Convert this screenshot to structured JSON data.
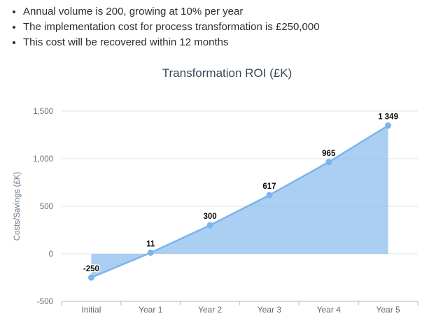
{
  "bullets": [
    "Annual volume is 200, growing at 10% per year",
    "The implementation cost for process transformation is £250,000",
    "This cost will be recovered within 12 months"
  ],
  "chart_data": {
    "type": "area",
    "title": "Transformation ROI (£K)",
    "categories": [
      "Initial",
      "Year 1",
      "Year 2",
      "Year 3",
      "Year 4",
      "Year 5"
    ],
    "values": [
      -250,
      11,
      300,
      617,
      965,
      1349
    ],
    "point_labels": [
      "-250",
      "11",
      "300",
      "617",
      "965",
      "1 349"
    ],
    "xlabel": "",
    "ylabel": "Costs/Savings (£K)",
    "ylim": [
      -500,
      1500
    ],
    "yticks": [
      {
        "value": -500,
        "label": "-500"
      },
      {
        "value": 0,
        "label": "0"
      },
      {
        "value": 500,
        "label": "500"
      },
      {
        "value": 1000,
        "label": "1,000"
      },
      {
        "value": 1500,
        "label": "1,500"
      }
    ],
    "threshold": 0,
    "grid": true,
    "legend": false,
    "colors": {
      "series": "#7cb5ec",
      "area_fill_opacity": 0.65,
      "gridline": "#e3e3e3",
      "axis_line": "#c3d0de",
      "tick_label": "#5f6b76",
      "axis_title": "#6b7a89",
      "data_label": "#0c0c0c",
      "title": "#3b4856",
      "body_text": "#2d2d2d"
    }
  }
}
